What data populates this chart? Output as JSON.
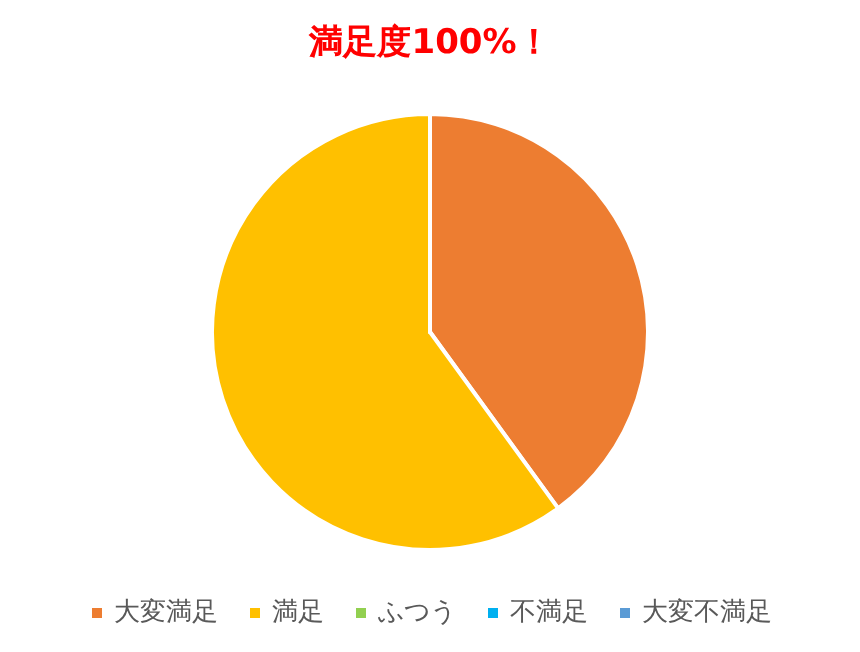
{
  "chart_data": {
    "type": "pie",
    "title": "満足度100%！",
    "categories": [
      "大変満足",
      "満足",
      "ふつう",
      "不満足",
      "大変不満足"
    ],
    "values": [
      40,
      60,
      0,
      0,
      0
    ],
    "colors": [
      "#ed7d31",
      "#ffc000",
      "#92d050",
      "#00b0f0",
      "#5b9bd5"
    ],
    "legend": "bottom"
  }
}
